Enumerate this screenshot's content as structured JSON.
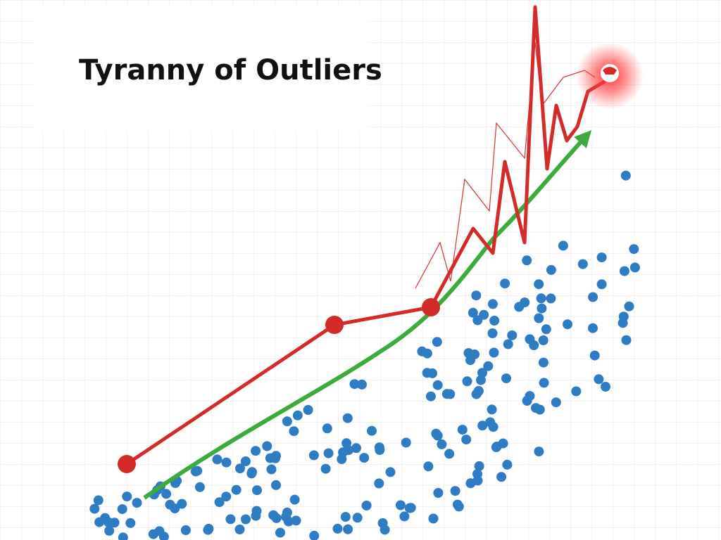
{
  "header": {
    "title": "Tyranny of Outliers"
  }
}
